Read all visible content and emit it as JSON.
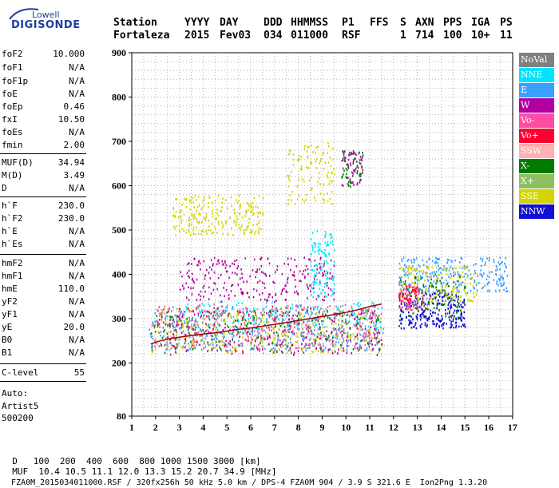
{
  "logo": {
    "brand": "Lowell",
    "product": "DIGISONDE"
  },
  "header": {
    "labels": [
      "Station",
      "YYYY",
      "DAY",
      "DDD",
      "HHMMSS",
      "P1",
      "FFS",
      "S",
      "AXN",
      "PPS",
      "IGA",
      "PS"
    ],
    "values": [
      "Fortaleza",
      "2015",
      "Fev03",
      "034",
      "011000",
      "RSF",
      "",
      "1",
      "714",
      "100",
      "10+",
      "11"
    ]
  },
  "params_group1": [
    {
      "name": "foF2",
      "value": "10.000"
    },
    {
      "name": "foF1",
      "value": "N/A"
    },
    {
      "name": "foF1p",
      "value": "N/A"
    },
    {
      "name": "foE",
      "value": "N/A"
    },
    {
      "name": "foEp",
      "value": "0.46"
    },
    {
      "name": "fxI",
      "value": "10.50"
    },
    {
      "name": "foEs",
      "value": "N/A"
    },
    {
      "name": "fmin",
      "value": "2.00"
    }
  ],
  "params_group2": [
    {
      "name": "MUF(D)",
      "value": "34.94"
    },
    {
      "name": "M(D)",
      "value": "3.49"
    },
    {
      "name": "D",
      "value": "N/A"
    }
  ],
  "params_group3": [
    {
      "name": "h`F",
      "value": "230.0"
    },
    {
      "name": "h`F2",
      "value": "230.0"
    },
    {
      "name": "h`E",
      "value": "N/A"
    },
    {
      "name": "h`Es",
      "value": "N/A"
    }
  ],
  "params_group4": [
    {
      "name": "hmF2",
      "value": "N/A"
    },
    {
      "name": "hmF1",
      "value": "N/A"
    },
    {
      "name": "hmE",
      "value": "110.0"
    },
    {
      "name": "yF2",
      "value": "N/A"
    },
    {
      "name": "yF1",
      "value": "N/A"
    },
    {
      "name": "yE",
      "value": "20.0"
    },
    {
      "name": "B0",
      "value": "N/A"
    },
    {
      "name": "B1",
      "value": "N/A"
    }
  ],
  "clevel": {
    "name": "C-level",
    "value": "55"
  },
  "auto": [
    "Auto:",
    "Artist5",
    "500200"
  ],
  "legend": [
    {
      "label": "NoVal",
      "color": "#808080"
    },
    {
      "label": "NNE",
      "color": "#00e5ff"
    },
    {
      "label": "E",
      "color": "#3aa0ff"
    },
    {
      "label": "W",
      "color": "#b000a0"
    },
    {
      "label": "Vo-",
      "color": "#ff4da6"
    },
    {
      "label": "Vo+",
      "color": "#ff0033"
    },
    {
      "label": "SSW",
      "color": "#ffb0b0"
    },
    {
      "label": "X-",
      "color": "#007a00"
    },
    {
      "label": "X+",
      "color": "#8fc060"
    },
    {
      "label": "SSE",
      "color": "#d4d400"
    },
    {
      "label": "NNW",
      "color": "#1010d0"
    }
  ],
  "chart_data": {
    "type": "scatter",
    "xlim": [
      1.5,
      17
    ],
    "ylim": [
      80,
      900
    ],
    "x_ticks": [
      1,
      2,
      3,
      4,
      5,
      6,
      7,
      8,
      9,
      10,
      11,
      12,
      13,
      14,
      15,
      16,
      17
    ],
    "y_ticks": [
      80,
      200,
      300,
      400,
      500,
      600,
      700,
      800,
      900
    ],
    "grid": true,
    "trace": {
      "color": "#a00000",
      "x": [
        1.8,
        2.2,
        2.6,
        3.0,
        3.5,
        4.0,
        4.5,
        5.0,
        5.5,
        6.0,
        6.5,
        7.0,
        7.5,
        8.0,
        8.5,
        9.0,
        9.5,
        10.0,
        10.5,
        11.0,
        11.5
      ],
      "y": [
        243,
        250,
        255,
        258,
        262,
        265,
        268,
        272,
        276,
        279,
        283,
        287,
        291,
        296,
        300,
        305,
        309,
        314,
        320,
        327,
        333
      ]
    },
    "clusters": [
      {
        "color": "#3aa0ff",
        "x": [
          1.7,
          11.6
        ],
        "y": [
          230,
          330
        ],
        "n": 420
      },
      {
        "color": "#ff4da6",
        "x": [
          1.8,
          11.5
        ],
        "y": [
          235,
          335
        ],
        "n": 260
      },
      {
        "color": "#d4d400",
        "x": [
          1.8,
          11.5
        ],
        "y": [
          225,
          320
        ],
        "n": 240
      },
      {
        "color": "#007a00",
        "x": [
          1.8,
          11.5
        ],
        "y": [
          225,
          320
        ],
        "n": 160
      },
      {
        "color": "#b000a0",
        "x": [
          2.0,
          11.5
        ],
        "y": [
          220,
          320
        ],
        "n": 180
      },
      {
        "color": "#00e5ff",
        "x": [
          3.0,
          11.5
        ],
        "y": [
          280,
          340
        ],
        "n": 120
      },
      {
        "color": "#808080",
        "x": [
          2.0,
          11.5
        ],
        "y": [
          230,
          330
        ],
        "n": 90
      },
      {
        "color": "#8fc060",
        "x": [
          2.0,
          11.5
        ],
        "y": [
          230,
          330
        ],
        "n": 90
      },
      {
        "color": "#ff0033",
        "x": [
          1.8,
          11.5
        ],
        "y": [
          225,
          330
        ],
        "n": 90
      },
      {
        "color": "#b000a0",
        "x": [
          3.0,
          9.5
        ],
        "y": [
          340,
          440
        ],
        "n": 260
      },
      {
        "color": "#00e5ff",
        "x": [
          8.5,
          9.5
        ],
        "y": [
          350,
          500
        ],
        "n": 120
      },
      {
        "color": "#d4d400",
        "x": [
          2.7,
          6.5
        ],
        "y": [
          490,
          580
        ],
        "n": 220
      },
      {
        "color": "#d4d400",
        "x": [
          7.5,
          9.5
        ],
        "y": [
          560,
          700
        ],
        "n": 110
      },
      {
        "color": "#007a00",
        "x": [
          9.8,
          10.7
        ],
        "y": [
          600,
          680
        ],
        "n": 50
      },
      {
        "color": "#b000a0",
        "x": [
          9.8,
          10.7
        ],
        "y": [
          600,
          680
        ],
        "n": 50
      },
      {
        "color": "#1010d0",
        "x": [
          12.2,
          15.0
        ],
        "y": [
          280,
          360
        ],
        "n": 260
      },
      {
        "color": "#3aa0ff",
        "x": [
          12.2,
          16.8
        ],
        "y": [
          360,
          440
        ],
        "n": 260
      },
      {
        "color": "#d4d400",
        "x": [
          12.2,
          15.5
        ],
        "y": [
          340,
          420
        ],
        "n": 160
      },
      {
        "color": "#007a00",
        "x": [
          12.2,
          15.0
        ],
        "y": [
          300,
          400
        ],
        "n": 100
      },
      {
        "color": "#ff4da6",
        "x": [
          12.2,
          13.5
        ],
        "y": [
          320,
          380
        ],
        "n": 60
      },
      {
        "color": "#ff0033",
        "x": [
          12.2,
          13.0
        ],
        "y": [
          340,
          380
        ],
        "n": 40
      }
    ]
  },
  "footer": {
    "d_label": "D",
    "d_values": [
      "100",
      "200",
      "400",
      "600",
      "800",
      "1000",
      "1500",
      "3000 [km]"
    ],
    "muf_label": "MUF",
    "muf_values": [
      "10.4",
      "10.5",
      "11.1",
      "12.0",
      "13.3",
      "15.2",
      "20.7",
      "34.9 [MHz]"
    ],
    "info": "FZA0M_2015034011000.RSF / 320fx256h 50 kHz 5.0 km / DPS-4 FZA0M 904 / 3.9 S 321.6 E",
    "tool": "Ion2Png 1.3.20"
  }
}
